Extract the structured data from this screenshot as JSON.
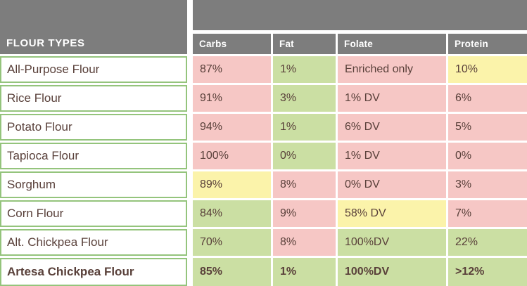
{
  "palette": {
    "gray_header": "#7d7d7d",
    "pink": "#f6c7c5",
    "green": "#cbdfa3",
    "yellow": "#fbf3aa",
    "cell_border_green": "#94c47c",
    "text_brown": "#59403a",
    "header_text": "#ffffff"
  },
  "table": {
    "header": "FLOUR TYPES",
    "columns": [
      "Carbs",
      "Fat",
      "Folate",
      "Protein"
    ],
    "rows": [
      {
        "name": "All-Purpose Flour",
        "bold": false,
        "cells": [
          {
            "text": "87%",
            "color": "pink"
          },
          {
            "text": "1%",
            "color": "green"
          },
          {
            "text": "Enriched only",
            "color": "pink"
          },
          {
            "text": "10%",
            "color": "yellow"
          }
        ]
      },
      {
        "name": "Rice Flour",
        "bold": false,
        "cells": [
          {
            "text": "91%",
            "color": "pink"
          },
          {
            "text": "3%",
            "color": "green"
          },
          {
            "text": "1% DV",
            "color": "pink"
          },
          {
            "text": "6%",
            "color": "pink"
          }
        ]
      },
      {
        "name": "Potato Flour",
        "bold": false,
        "cells": [
          {
            "text": "94%",
            "color": "pink"
          },
          {
            "text": "1%",
            "color": "green"
          },
          {
            "text": "6% DV",
            "color": "pink"
          },
          {
            "text": "5%",
            "color": "pink"
          }
        ]
      },
      {
        "name": "Tapioca Flour",
        "bold": false,
        "cells": [
          {
            "text": "100%",
            "color": "pink"
          },
          {
            "text": "0%",
            "color": "green"
          },
          {
            "text": "1% DV",
            "color": "pink"
          },
          {
            "text": "0%",
            "color": "pink"
          }
        ]
      },
      {
        "name": "Sorghum",
        "bold": false,
        "cells": [
          {
            "text": "89%",
            "color": "yellow"
          },
          {
            "text": "8%",
            "color": "pink"
          },
          {
            "text": "0% DV",
            "color": "pink"
          },
          {
            "text": "3%",
            "color": "pink"
          }
        ]
      },
      {
        "name": "Corn Flour",
        "bold": false,
        "cells": [
          {
            "text": "84%",
            "color": "green"
          },
          {
            "text": "9%",
            "color": "pink"
          },
          {
            "text": "58% DV",
            "color": "yellow"
          },
          {
            "text": "7%",
            "color": "pink"
          }
        ]
      },
      {
        "name": "Alt. Chickpea Flour",
        "bold": false,
        "cells": [
          {
            "text": "70%",
            "color": "green"
          },
          {
            "text": "8%",
            "color": "pink"
          },
          {
            "text": "100%DV",
            "color": "green"
          },
          {
            "text": "22%",
            "color": "green"
          }
        ]
      },
      {
        "name": "Artesa Chickpea Flour",
        "bold": true,
        "cells": [
          {
            "text": "85%",
            "color": "green"
          },
          {
            "text": "1%",
            "color": "green"
          },
          {
            "text": "100%DV",
            "color": "green"
          },
          {
            "text": ">12%",
            "color": "green"
          }
        ]
      }
    ]
  },
  "chart_data": {
    "type": "table",
    "title": "FLOUR TYPES",
    "columns": [
      "FLOUR TYPES",
      "Carbs",
      "Fat",
      "Folate",
      "Protein"
    ],
    "rows": [
      [
        "All-Purpose Flour",
        "87%",
        "1%",
        "Enriched only",
        "10%"
      ],
      [
        "Rice Flour",
        "91%",
        "3%",
        "1% DV",
        "6%"
      ],
      [
        "Potato Flour",
        "94%",
        "1%",
        "6% DV",
        "5%"
      ],
      [
        "Tapioca Flour",
        "100%",
        "0%",
        "1% DV",
        "0%"
      ],
      [
        "Sorghum",
        "89%",
        "8%",
        "0% DV",
        "3%"
      ],
      [
        "Corn Flour",
        "84%",
        "9%",
        "58% DV",
        "7%"
      ],
      [
        "Alt. Chickpea Flour",
        "70%",
        "8%",
        "100%DV",
        "22%"
      ],
      [
        "Artesa Chickpea Flour",
        "85%",
        "1%",
        "100%DV",
        ">12%"
      ]
    ],
    "cell_color_coding": "pink=unfavorable, green=favorable, yellow=intermediate",
    "layout": {
      "grid": "off",
      "legend": "none"
    }
  }
}
